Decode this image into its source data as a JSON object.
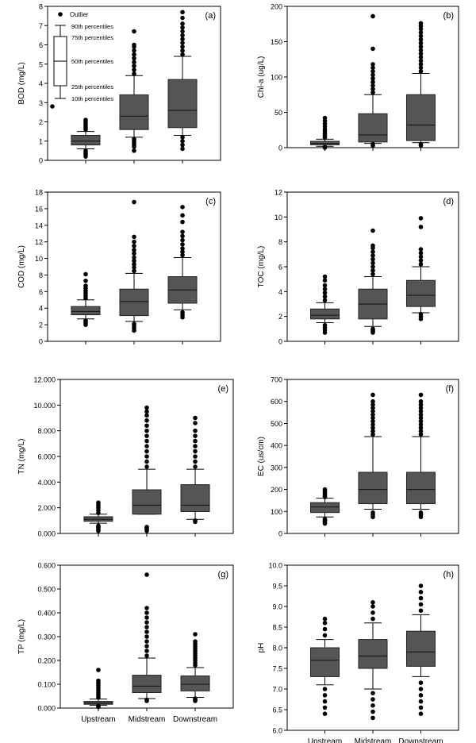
{
  "figure": {
    "box_fill": "#555555",
    "box_stroke": "#222222",
    "outlier_color": "#000000",
    "legend": {
      "outlier": "Outlier",
      "p90": "90th percentiles",
      "p75": "75th percentiles",
      "p50": "50th percentiles",
      "p25": "25th percentiles",
      "p10": "10th percentiles"
    }
  },
  "chart_data": [
    {
      "type": "box",
      "panel": "(a)",
      "ylabel": "BOD (mg/L)",
      "categories": [
        "Upstream",
        "Midstream",
        "Downstream"
      ],
      "ylim": [
        0,
        8
      ],
      "yticks": [
        0,
        1,
        2,
        3,
        4,
        5,
        6,
        7,
        8
      ],
      "ytick_labels": [
        "0",
        "1",
        "2",
        "3",
        "4",
        "5",
        "6",
        "7",
        "8"
      ],
      "show_xlabels": false,
      "boxes": [
        {
          "p10": 0.6,
          "p25": 0.8,
          "p50": 1.0,
          "p75": 1.3,
          "p90": 1.5,
          "outliers": [
            0.2,
            0.3,
            0.4,
            0.5,
            1.6,
            1.7,
            1.8,
            1.9,
            2.0,
            2.1
          ]
        },
        {
          "p10": 1.2,
          "p25": 1.6,
          "p50": 2.3,
          "p75": 3.4,
          "p90": 4.4,
          "outliers": [
            0.5,
            0.7,
            0.8,
            0.9,
            1.0,
            1.1,
            4.5,
            4.7,
            4.9,
            5.1,
            5.3,
            5.5,
            5.7,
            5.9,
            6.0,
            6.7
          ]
        },
        {
          "p10": 1.3,
          "p25": 1.7,
          "p50": 2.6,
          "p75": 4.2,
          "p90": 5.4,
          "outliers": [
            0.6,
            0.8,
            1.0,
            1.2,
            5.5,
            5.7,
            5.9,
            6.1,
            6.3,
            6.5,
            6.7,
            6.9,
            7.1,
            7.4,
            7.7
          ]
        }
      ]
    },
    {
      "type": "box",
      "panel": "(b)",
      "ylabel": "Chl-a (ug/L)",
      "categories": [
        "Upstream",
        "Midstream",
        "Downstream"
      ],
      "ylim": [
        0,
        200
      ],
      "yticks": [
        0,
        50,
        100,
        150,
        200
      ],
      "ytick_labels": [
        "0",
        "50",
        "100",
        "150",
        "200"
      ],
      "show_xlabels": false,
      "boxes": [
        {
          "p10": 2,
          "p25": 4,
          "p50": 6,
          "p75": 9,
          "p90": 12,
          "outliers": [
            0,
            1,
            14,
            17,
            20,
            23,
            26,
            30,
            34,
            38,
            42
          ]
        },
        {
          "p10": 6,
          "p25": 8,
          "p50": 18,
          "p75": 48,
          "p90": 75,
          "outliers": [
            3,
            5,
            78,
            83,
            88,
            93,
            98,
            103,
            108,
            113,
            118,
            140,
            186
          ]
        },
        {
          "p10": 7,
          "p25": 10,
          "p50": 32,
          "p75": 75,
          "p90": 105,
          "outliers": [
            3,
            5,
            108,
            113,
            118,
            123,
            128,
            133,
            138,
            143,
            148,
            153,
            158,
            163,
            168,
            172,
            176
          ]
        }
      ]
    },
    {
      "type": "box",
      "panel": "(c)",
      "ylabel": "COD (mg/L)",
      "categories": [
        "Upstream",
        "Midstream",
        "Downstream"
      ],
      "ylim": [
        0,
        18
      ],
      "yticks": [
        0,
        2,
        4,
        6,
        8,
        10,
        12,
        14,
        16,
        18
      ],
      "ytick_labels": [
        "0",
        "2",
        "4",
        "6",
        "8",
        "10",
        "12",
        "14",
        "16",
        "18"
      ],
      "show_xlabels": false,
      "boxes": [
        {
          "p10": 2.7,
          "p25": 3.2,
          "p50": 3.6,
          "p75": 4.2,
          "p90": 5.0,
          "outliers": [
            2.0,
            2.2,
            2.4,
            2.5,
            5.2,
            5.5,
            5.8,
            6.1,
            6.4,
            6.7,
            7.3,
            8.1
          ]
        },
        {
          "p10": 2.4,
          "p25": 3.1,
          "p50": 4.8,
          "p75": 6.3,
          "p90": 8.2,
          "outliers": [
            1.3,
            1.6,
            1.9,
            2.1,
            8.5,
            8.9,
            9.3,
            9.7,
            10.1,
            10.6,
            11.0,
            11.5,
            12.0,
            12.6,
            16.8
          ]
        },
        {
          "p10": 3.8,
          "p25": 4.6,
          "p50": 6.2,
          "p75": 7.8,
          "p90": 10.1,
          "outliers": [
            2.9,
            3.2,
            3.5,
            10.4,
            10.8,
            11.2,
            11.7,
            12.2,
            12.7,
            13.2,
            14.4,
            15.2,
            16.2
          ]
        }
      ]
    },
    {
      "type": "box",
      "panel": "(d)",
      "ylabel": "TOC (mg/L)",
      "categories": [
        "Upstream",
        "Midstream",
        "Downstream"
      ],
      "ylim": [
        0,
        12
      ],
      "yticks": [
        0,
        2,
        4,
        6,
        8,
        10,
        12
      ],
      "ytick_labels": [
        "0",
        "2",
        "4",
        "6",
        "8",
        "10",
        "12"
      ],
      "show_xlabels": false,
      "boxes": [
        {
          "p10": 1.5,
          "p25": 1.8,
          "p50": 2.1,
          "p75": 2.6,
          "p90": 3.1,
          "outliers": [
            0.7,
            0.9,
            1.1,
            1.3,
            3.3,
            3.6,
            3.9,
            4.2,
            4.5,
            4.9,
            5.2
          ]
        },
        {
          "p10": 1.2,
          "p25": 1.8,
          "p50": 3.0,
          "p75": 4.2,
          "p90": 5.2,
          "outliers": [
            0.7,
            0.8,
            0.9,
            1.0,
            5.4,
            5.7,
            6.0,
            6.3,
            6.6,
            6.9,
            7.2,
            7.5,
            7.7,
            8.9
          ]
        },
        {
          "p10": 2.3,
          "p25": 2.8,
          "p50": 3.7,
          "p75": 4.9,
          "p90": 6.0,
          "outliers": [
            1.8,
            2.0,
            2.2,
            6.2,
            6.5,
            6.8,
            7.1,
            7.4,
            9.2,
            9.9
          ]
        }
      ]
    },
    {
      "type": "box",
      "panel": "(e)",
      "ylabel": "TN (mg/L)",
      "categories": [
        "Upstream",
        "Midstream",
        "Downstream"
      ],
      "ylim": [
        0,
        12
      ],
      "yticks": [
        0,
        2,
        4,
        6,
        8,
        10,
        12
      ],
      "ytick_labels": [
        "0.000",
        "2.000",
        "4.000",
        "6.000",
        "8.000",
        "10.000",
        "12.000"
      ],
      "show_xlabels": false,
      "boxes": [
        {
          "p10": 0.8,
          "p25": 0.95,
          "p50": 1.1,
          "p75": 1.3,
          "p90": 1.5,
          "outliers": [
            0.2,
            0.3,
            0.4,
            0.5,
            0.6,
            1.6,
            1.8,
            2.0,
            2.2,
            2.4
          ]
        },
        {
          "p10": 1.5,
          "p25": 1.5,
          "p50": 2.2,
          "p75": 3.4,
          "p90": 5.0,
          "outliers": [
            0.2,
            0.3,
            0.4,
            0.5,
            5.2,
            5.6,
            6.0,
            6.4,
            6.8,
            7.2,
            7.6,
            8.0,
            8.4,
            8.8,
            9.2,
            9.5,
            9.8
          ]
        },
        {
          "p10": 1.1,
          "p25": 1.7,
          "p50": 2.2,
          "p75": 3.8,
          "p90": 5.0,
          "outliers": [
            0.9,
            1.0,
            5.2,
            5.6,
            6.0,
            6.4,
            6.8,
            7.2,
            7.6,
            8.0,
            8.6,
            9.0
          ]
        }
      ]
    },
    {
      "type": "box",
      "panel": "(f)",
      "ylabel": "EC (us/cm)",
      "categories": [
        "Upstream",
        "Midstream",
        "Downstream"
      ],
      "ylim": [
        0,
        700
      ],
      "yticks": [
        0,
        100,
        200,
        300,
        400,
        500,
        600,
        700
      ],
      "ytick_labels": [
        "0",
        "100",
        "200",
        "300",
        "400",
        "500",
        "600",
        "700"
      ],
      "show_xlabels": false,
      "boxes": [
        {
          "p10": 75,
          "p25": 95,
          "p50": 120,
          "p75": 140,
          "p90": 160,
          "outliers": [
            45,
            50,
            55,
            60,
            65,
            165,
            170,
            178,
            185,
            192,
            200
          ]
        },
        {
          "p10": 110,
          "p25": 135,
          "p50": 200,
          "p75": 278,
          "p90": 440,
          "outliers": [
            75,
            85,
            95,
            450,
            465,
            480,
            495,
            510,
            525,
            540,
            555,
            570,
            585,
            600,
            630
          ]
        },
        {
          "p10": 110,
          "p25": 135,
          "p50": 200,
          "p75": 278,
          "p90": 440,
          "outliers": [
            75,
            85,
            95,
            450,
            465,
            480,
            495,
            510,
            525,
            540,
            555,
            570,
            585,
            600,
            630
          ]
        }
      ]
    },
    {
      "type": "box",
      "panel": "(g)",
      "ylabel": "TP (mg/L)",
      "categories": [
        "Upstream",
        "Midstream",
        "Downstream"
      ],
      "ylim": [
        0,
        0.6
      ],
      "yticks": [
        0,
        0.1,
        0.2,
        0.3,
        0.4,
        0.5,
        0.6
      ],
      "ytick_labels": [
        "0.000",
        "0.100",
        "0.200",
        "0.300",
        "0.400",
        "0.500",
        "0.600"
      ],
      "show_xlabels": true,
      "boxes": [
        {
          "p10": 0.012,
          "p25": 0.016,
          "p50": 0.021,
          "p75": 0.028,
          "p90": 0.038,
          "outliers": [
            0.005,
            0.008,
            0.045,
            0.055,
            0.065,
            0.075,
            0.085,
            0.095,
            0.105,
            0.115,
            0.16
          ]
        },
        {
          "p10": 0.04,
          "p25": 0.065,
          "p50": 0.092,
          "p75": 0.138,
          "p90": 0.21,
          "outliers": [
            0.03,
            0.035,
            0.22,
            0.24,
            0.26,
            0.28,
            0.3,
            0.32,
            0.34,
            0.36,
            0.38,
            0.4,
            0.42,
            0.56
          ]
        },
        {
          "p10": 0.045,
          "p25": 0.072,
          "p50": 0.1,
          "p75": 0.135,
          "p90": 0.17,
          "outliers": [
            0.03,
            0.035,
            0.04,
            0.18,
            0.19,
            0.2,
            0.21,
            0.22,
            0.23,
            0.24,
            0.25,
            0.26,
            0.27,
            0.28,
            0.31
          ]
        }
      ]
    },
    {
      "type": "box",
      "panel": "(h)",
      "ylabel": "pH",
      "categories": [
        "Upstream",
        "Midstream",
        "Downstream"
      ],
      "ylim": [
        6.0,
        10.0
      ],
      "yticks": [
        6.0,
        6.5,
        7.0,
        7.5,
        8.0,
        8.5,
        9.0,
        9.5,
        10.0
      ],
      "ytick_labels": [
        "6.0",
        "6.5",
        "7.0",
        "7.5",
        "8.0",
        "8.5",
        "9.0",
        "9.5",
        "10.0"
      ],
      "show_xlabels": true,
      "boxes": [
        {
          "p10": 7.1,
          "p25": 7.3,
          "p50": 7.7,
          "p75": 8.0,
          "p90": 8.2,
          "outliers": [
            6.4,
            6.55,
            6.7,
            6.85,
            7.0,
            8.3,
            8.45,
            8.6,
            8.7
          ]
        },
        {
          "p10": 7.0,
          "p25": 7.5,
          "p50": 7.8,
          "p75": 8.2,
          "p90": 8.6,
          "outliers": [
            6.3,
            6.45,
            6.6,
            6.75,
            6.9,
            8.7,
            8.85,
            9.0,
            9.1
          ]
        },
        {
          "p10": 7.3,
          "p25": 7.55,
          "p50": 7.9,
          "p75": 8.4,
          "p90": 8.8,
          "outliers": [
            6.4,
            6.55,
            6.7,
            6.85,
            7.0,
            7.15,
            8.9,
            9.05,
            9.2,
            9.35,
            9.5
          ]
        }
      ]
    }
  ]
}
